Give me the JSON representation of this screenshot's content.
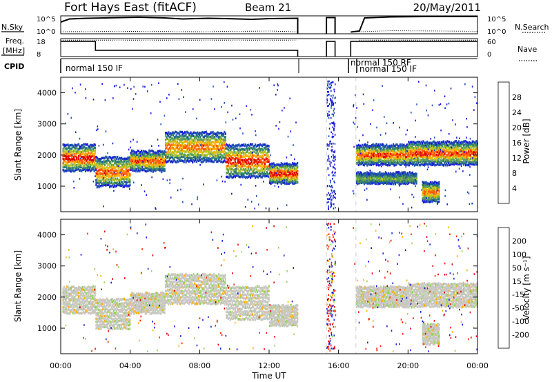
{
  "header": {
    "title": "Fort Hays East (fitACF)",
    "beam": "Beam 21",
    "date": "20/May/2011"
  },
  "panels": {
    "top": {
      "left_label": "N.Sky",
      "right_label": "N.Search",
      "ticks_left": [
        "10^5",
        "10^0"
      ],
      "ticks_right": [
        "10^5",
        "10^0"
      ],
      "nsky": [
        [
          0.0,
          3.4
        ],
        [
          0.5,
          4.3
        ],
        [
          1.5,
          4.5
        ],
        [
          2.5,
          4.6
        ],
        [
          3.5,
          4.7
        ],
        [
          4.5,
          4.8
        ],
        [
          6,
          4.6
        ],
        [
          7,
          4.3
        ],
        [
          8.5,
          4.5
        ],
        [
          9.5,
          4.4
        ],
        [
          11,
          4.2
        ],
        [
          12,
          4.4
        ],
        [
          13.65,
          4.5
        ],
        [
          13.65,
          0
        ]
      ],
      "nsky2": [
        [
          15.3,
          0
        ],
        [
          15.3,
          4.7
        ],
        [
          15.8,
          4.7
        ],
        [
          15.8,
          0
        ]
      ],
      "nsky3": [
        [
          16.7,
          0.5
        ],
        [
          17.2,
          0.8
        ],
        [
          17.5,
          4.6
        ],
        [
          19,
          4.9
        ],
        [
          21,
          5.0
        ],
        [
          23,
          5.0
        ],
        [
          24,
          5.0
        ]
      ],
      "nsearch": [
        [
          0,
          0.6
        ],
        [
          4,
          0.7
        ],
        [
          8,
          0.6
        ],
        [
          12,
          0.8
        ],
        [
          13.6,
          0.6
        ]
      ],
      "nsearch2": [
        [
          16.8,
          0.5
        ],
        [
          19,
          0.9
        ],
        [
          22,
          0.8
        ],
        [
          24,
          0.7
        ]
      ]
    },
    "freq": {
      "left_label": "Freq.",
      "unit": "[MHz]",
      "right_label": "Nave",
      "ticks_left": [
        "18",
        "8"
      ],
      "ticks_right": [
        "60",
        "0"
      ],
      "freq": [
        [
          0,
          16.5
        ],
        [
          2.0,
          16.5
        ],
        [
          2.0,
          11.5
        ],
        [
          13.65,
          11.5
        ],
        [
          13.65,
          8
        ]
      ],
      "freq2": [
        [
          15.3,
          8
        ],
        [
          15.3,
          16.5
        ],
        [
          15.8,
          16.5
        ],
        [
          15.8,
          8
        ]
      ],
      "freq3": [
        [
          16.7,
          8
        ],
        [
          16.7,
          16.5
        ],
        [
          17.2,
          16.5
        ],
        [
          17.2,
          16.5
        ],
        [
          24,
          16.5
        ]
      ],
      "nave": [
        [
          0,
          55
        ],
        [
          13.6,
          55
        ]
      ],
      "nave2": [
        [
          17.2,
          55
        ],
        [
          24,
          55
        ]
      ]
    },
    "cpid": {
      "label": "CPID",
      "modes": [
        "normal 150 IF",
        "normal 150 RF",
        "normal 150 IF"
      ]
    }
  },
  "chart_data": [
    {
      "type": "heatmap",
      "title": "Fort Hays East (fitACF) Beam 21 20/May/2011 – Power",
      "xlabel": "Time UT",
      "ylabel": "Slant Range [km]",
      "x_ticks": [
        "00:00",
        "04:00",
        "08:00",
        "12:00",
        "16:00",
        "20:00",
        "00:00"
      ],
      "xlim": [
        0,
        24
      ],
      "ylim": [
        180,
        4500
      ],
      "y_ticks": [
        1000,
        2000,
        3000,
        4000
      ],
      "colorbar": {
        "label": "Power [dB]",
        "ticks": [
          "4",
          "8",
          "12",
          "16",
          "20",
          "24",
          "28"
        ],
        "colors": [
          "#1a1adc",
          "#1f4fb4",
          "#2e7a72",
          "#5a9e5a",
          "#b4c424",
          "#ffb000",
          "#ff5a00",
          "#e00000"
        ]
      },
      "bands": [
        {
          "t0": 0.1,
          "t1": 2.0,
          "r0": 1500,
          "r1": 2300,
          "peak": 27
        },
        {
          "t0": 2.0,
          "t1": 4.0,
          "r0": 1000,
          "r1": 1900,
          "peak": 24
        },
        {
          "t0": 4.0,
          "t1": 6.0,
          "r0": 1500,
          "r1": 2100,
          "peak": 24
        },
        {
          "t0": 6.0,
          "t1": 9.5,
          "r0": 1800,
          "r1": 2700,
          "peak": 22
        },
        {
          "t0": 9.5,
          "t1": 12.0,
          "r0": 1300,
          "r1": 2300,
          "peak": 26
        },
        {
          "t0": 12.0,
          "t1": 13.65,
          "r0": 1100,
          "r1": 1700,
          "peak": 27
        },
        {
          "t0": 17.0,
          "t1": 20.0,
          "r0": 1700,
          "r1": 2300,
          "peak": 24
        },
        {
          "t0": 20.0,
          "t1": 24.0,
          "r0": 1700,
          "r1": 2400,
          "peak": 25
        },
        {
          "t0": 17.0,
          "t1": 20.5,
          "r0": 1100,
          "r1": 1400,
          "peak": 12
        },
        {
          "t0": 20.8,
          "t1": 21.8,
          "r0": 500,
          "r1": 1100,
          "peak": 22
        }
      ]
    },
    {
      "type": "heatmap",
      "title": "Fort Hays East (fitACF) Beam 21 20/May/2011 – Velocity",
      "xlabel": "Time UT",
      "ylabel": "Slant Range [km]",
      "x_ticks": [
        "00:00",
        "04:00",
        "08:00",
        "12:00",
        "16:00",
        "20:00",
        "00:00"
      ],
      "xlim": [
        0,
        24
      ],
      "ylim": [
        180,
        4500
      ],
      "y_ticks": [
        1000,
        2000,
        3000,
        4000
      ],
      "colorbar": {
        "label": "Velocity [m s⁻¹]",
        "ticks": [
          "200",
          "100",
          "50",
          "15",
          "-15",
          "-50",
          "-100",
          "-200"
        ],
        "colors": [
          "#1a1adc",
          "#2a5fa0",
          "#3a9040",
          "#8fd64a",
          "#c8c8c0",
          "#ffb000",
          "#ff6a00",
          "#ff2000",
          "#e00000"
        ]
      },
      "bands": [
        {
          "t0": 0.1,
          "t1": 2.0,
          "r0": 1500,
          "r1": 2300
        },
        {
          "t0": 2.0,
          "t1": 4.0,
          "r0": 1000,
          "r1": 1900
        },
        {
          "t0": 4.0,
          "t1": 6.0,
          "r0": 1500,
          "r1": 2100
        },
        {
          "t0": 6.0,
          "t1": 9.5,
          "r0": 1800,
          "r1": 2700
        },
        {
          "t0": 9.5,
          "t1": 12.0,
          "r0": 1300,
          "r1": 2300
        },
        {
          "t0": 12.0,
          "t1": 13.65,
          "r0": 1100,
          "r1": 1700
        },
        {
          "t0": 17.0,
          "t1": 20.0,
          "r0": 1700,
          "r1": 2300
        },
        {
          "t0": 20.0,
          "t1": 24.0,
          "r0": 1700,
          "r1": 2400
        },
        {
          "t0": 20.8,
          "t1": 21.8,
          "r0": 500,
          "r1": 1100
        }
      ]
    }
  ],
  "colors": {
    "frame": "#000000",
    "background": "#ffffff"
  }
}
